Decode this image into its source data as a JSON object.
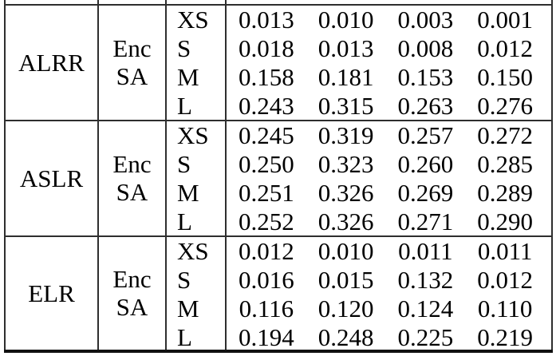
{
  "table": {
    "groups": [
      {
        "name": "ALRR",
        "enc_label": "Enc",
        "sa_label": "SA",
        "rows": [
          {
            "size": "XS",
            "values": [
              "0.013",
              "0.010",
              "0.003",
              "0.001"
            ]
          },
          {
            "size": "S",
            "values": [
              "0.018",
              "0.013",
              "0.008",
              "0.012"
            ]
          },
          {
            "size": "M",
            "values": [
              "0.158",
              "0.181",
              "0.153",
              "0.150"
            ]
          },
          {
            "size": "L",
            "values": [
              "0.243",
              "0.315",
              "0.263",
              "0.276"
            ]
          }
        ]
      },
      {
        "name": "ASLR",
        "enc_label": "Enc",
        "sa_label": "SA",
        "rows": [
          {
            "size": "XS",
            "values": [
              "0.245",
              "0.319",
              "0.257",
              "0.272"
            ]
          },
          {
            "size": "S",
            "values": [
              "0.250",
              "0.323",
              "0.260",
              "0.285"
            ]
          },
          {
            "size": "M",
            "values": [
              "0.251",
              "0.326",
              "0.269",
              "0.289"
            ]
          },
          {
            "size": "L",
            "values": [
              "0.252",
              "0.326",
              "0.271",
              "0.290"
            ]
          }
        ]
      },
      {
        "name": "ELR",
        "enc_label": "Enc",
        "sa_label": "SA",
        "rows": [
          {
            "size": "XS",
            "values": [
              "0.012",
              "0.010",
              "0.011",
              "0.011"
            ]
          },
          {
            "size": "S",
            "values": [
              "0.016",
              "0.015",
              "0.132",
              "0.012"
            ]
          },
          {
            "size": "M",
            "values": [
              "0.116",
              "0.120",
              "0.124",
              "0.110"
            ]
          },
          {
            "size": "L",
            "values": [
              "0.194",
              "0.248",
              "0.225",
              "0.219"
            ]
          }
        ]
      }
    ],
    "colors": {
      "rule": "#2e2e2e",
      "bottom_rule": "#111111",
      "text": "#000000",
      "background": "#ffffff"
    }
  },
  "chart_data": {
    "type": "table",
    "row_groups": [
      "ALRR",
      "ASLR",
      "ELR"
    ],
    "group_sub_label": "Enc SA",
    "sizes": [
      "XS",
      "S",
      "M",
      "L"
    ],
    "series": [
      {
        "name": "ALRR",
        "values": [
          [
            0.013,
            0.01,
            0.003,
            0.001
          ],
          [
            0.018,
            0.013,
            0.008,
            0.012
          ],
          [
            0.158,
            0.181,
            0.153,
            0.15
          ],
          [
            0.243,
            0.315,
            0.263,
            0.276
          ]
        ]
      },
      {
        "name": "ASLR",
        "values": [
          [
            0.245,
            0.319,
            0.257,
            0.272
          ],
          [
            0.25,
            0.323,
            0.26,
            0.285
          ],
          [
            0.251,
            0.326,
            0.269,
            0.289
          ],
          [
            0.252,
            0.326,
            0.271,
            0.29
          ]
        ]
      },
      {
        "name": "ELR",
        "values": [
          [
            0.012,
            0.01,
            0.011,
            0.011
          ],
          [
            0.016,
            0.015,
            0.132,
            0.012
          ],
          [
            0.116,
            0.12,
            0.124,
            0.11
          ],
          [
            0.194,
            0.248,
            0.225,
            0.219
          ]
        ]
      }
    ]
  }
}
